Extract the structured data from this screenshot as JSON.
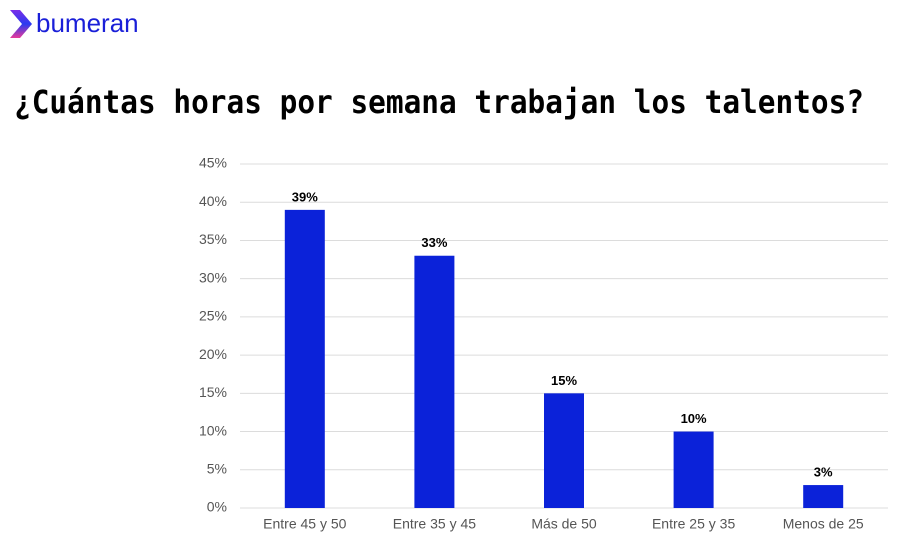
{
  "logo": {
    "text": "bumeran"
  },
  "chart_data": {
    "type": "bar",
    "title": "¿Cuántas horas por semana trabajan los talentos?",
    "categories": [
      "Entre 45 y 50",
      "Entre 35 y 45",
      "Más de 50",
      "Entre 25 y 35",
      "Menos de 25"
    ],
    "values": [
      39,
      33,
      15,
      10,
      3
    ],
    "value_labels": [
      "39%",
      "33%",
      "15%",
      "10%",
      "3%"
    ],
    "color": "#0b22d9",
    "ylim": [
      0,
      45
    ],
    "yticks": [
      {
        "value": 0,
        "label": "0%"
      },
      {
        "value": 5,
        "label": "5%"
      },
      {
        "value": 10,
        "label": "10%"
      },
      {
        "value": 15,
        "label": "15%"
      },
      {
        "value": 20,
        "label": "20%"
      },
      {
        "value": 25,
        "label": "25%"
      },
      {
        "value": 30,
        "label": "30%"
      },
      {
        "value": 35,
        "label": "35%"
      },
      {
        "value": 40,
        "label": "40%"
      },
      {
        "value": 45,
        "label": "45%"
      }
    ],
    "grid": true
  }
}
